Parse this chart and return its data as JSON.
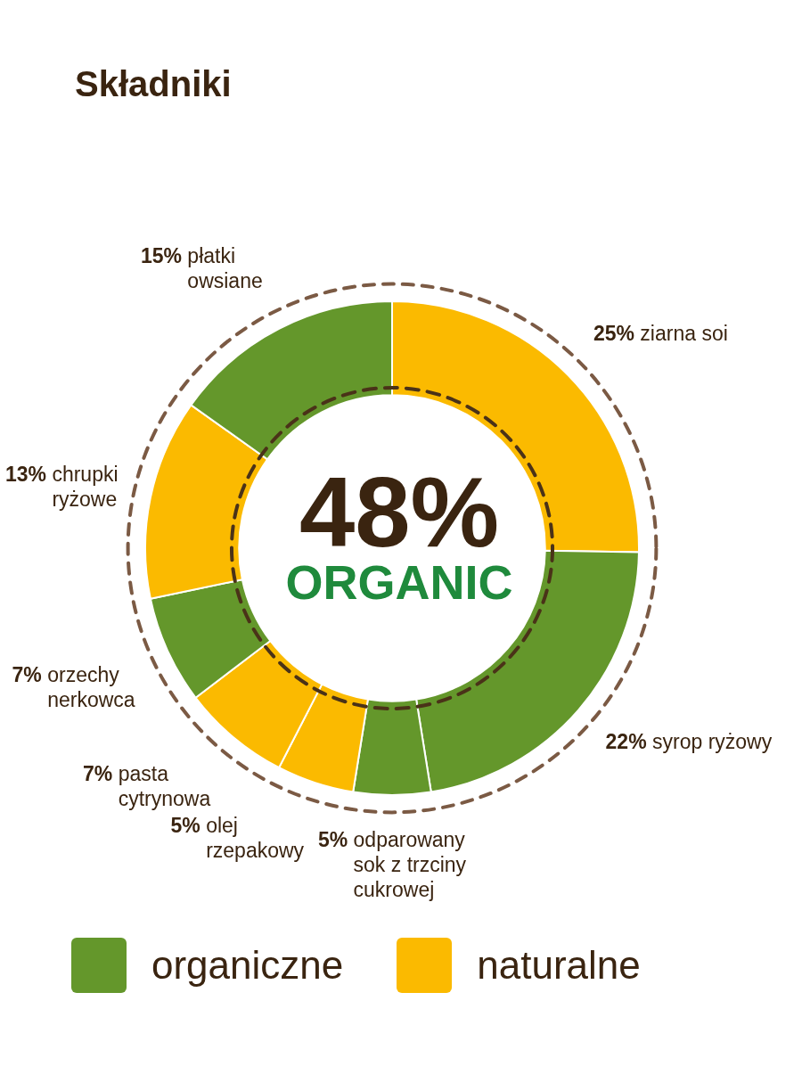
{
  "chart_data": {
    "type": "donut",
    "title": "Składniki",
    "categories": [
      "ziarna soi",
      "syrop ryżowy",
      "odparowany sok z trzciny cukrowej",
      "olej rzepakowy",
      "pasta cytrynowa",
      "orzechy nerkowca",
      "chrupki ryżowe",
      "płatki owsiane"
    ],
    "values": [
      25,
      22,
      5,
      5,
      7,
      7,
      13,
      15
    ],
    "colors": [
      "#fbba00",
      "#64972b",
      "#64972b",
      "#fbba00",
      "#fbba00",
      "#64972b",
      "#fbba00",
      "#64972b"
    ],
    "value_labels": [
      "25%",
      "22%",
      "5%",
      "5%",
      "7%",
      "7%",
      "13%",
      "15%"
    ],
    "annotations": [
      "48%",
      "ORGANIC",
      "organiczne",
      "naturalne"
    ]
  }
}
